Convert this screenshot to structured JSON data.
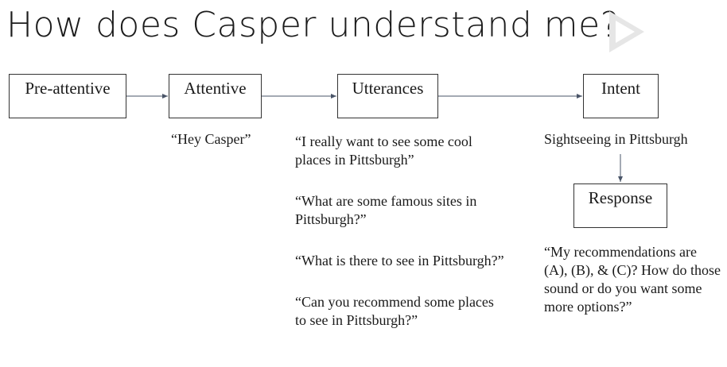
{
  "title": "How does Casper understand me?",
  "icons": {
    "logo": "play-icon"
  },
  "boxes": {
    "preattentive": "Pre-attentive",
    "attentive": "Attentive",
    "utterances": "Utterances",
    "intent": "Intent",
    "response": "Response"
  },
  "notes": {
    "attentive": "“Hey Casper”",
    "utterances": [
      "“I really want to see some cool places in Pittsburgh”",
      "“What are some famous sites in Pittsburgh?”",
      "“What is there to see in Pittsburgh?”",
      "“Can you recommend some places to see in Pittsburgh?”"
    ],
    "intent": "Sightseeing in Pittsburgh",
    "response": "“My recommendations are (A), (B), & (C)? How do those sound or do you want some more options?”"
  }
}
